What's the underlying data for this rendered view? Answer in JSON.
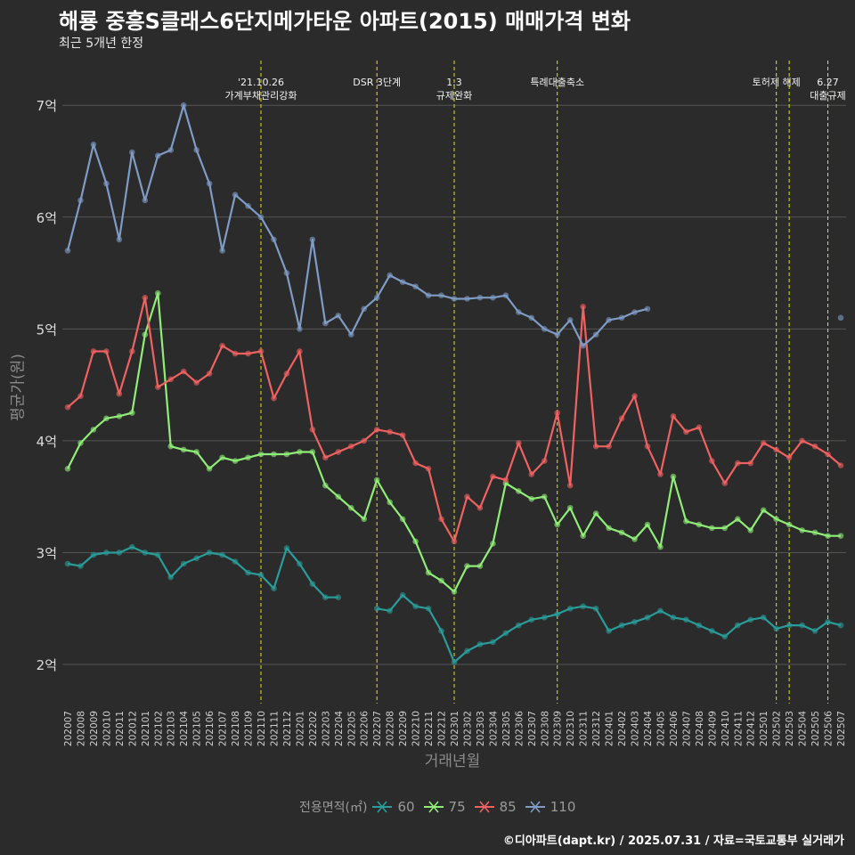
{
  "title": "해룡 중흥S클래스6단지메가타운 아파트(2015) 매매가격 변화",
  "subtitle": "최근 5개년 한정",
  "caption": "©디아파트(dapt.kr) / 2025.07.31 / 자료=국토교통부 실거래가",
  "colors": {
    "60": "#2a9d9a",
    "75": "#90ee78",
    "85": "#f06161",
    "110": "#7f9cc6",
    "vline": "#e6e600",
    "grid": "#555555",
    "bg": "#2b2b2b"
  },
  "chart_data": {
    "type": "line",
    "xlabel": "거래년월",
    "ylabel": "평균가(원)",
    "ylim": [
      1.65,
      7.4
    ],
    "yticks": [
      2,
      3,
      4,
      5,
      6,
      7
    ],
    "ytick_labels": [
      "2억",
      "3억",
      "4억",
      "5억",
      "6억",
      "7억"
    ],
    "grid": "horizontal",
    "x": [
      "202007",
      "202008",
      "202009",
      "202010",
      "202011",
      "202012",
      "202101",
      "202102",
      "202103",
      "202104",
      "202105",
      "202106",
      "202107",
      "202108",
      "202109",
      "202110",
      "202111",
      "202112",
      "202201",
      "202202",
      "202203",
      "202204",
      "202205",
      "202206",
      "202207",
      "202208",
      "202209",
      "202210",
      "202211",
      "202212",
      "202301",
      "202302",
      "202303",
      "202304",
      "202305",
      "202306",
      "202307",
      "202308",
      "202309",
      "202310",
      "202311",
      "202312",
      "202401",
      "202402",
      "202403",
      "202404",
      "202405",
      "202406",
      "202407",
      "202408",
      "202409",
      "202410",
      "202411",
      "202412",
      "202501",
      "202502",
      "202503",
      "202504",
      "202505",
      "202506",
      "202507"
    ],
    "legend_title": "전용면적(㎡)",
    "legend_position": "bottom",
    "series": [
      {
        "name": "60",
        "values": [
          2.9,
          2.88,
          2.98,
          3.0,
          3.0,
          3.05,
          3.0,
          2.98,
          2.78,
          2.9,
          2.95,
          3.0,
          2.98,
          2.92,
          2.82,
          2.8,
          2.68,
          3.04,
          2.9,
          2.72,
          2.6,
          2.6,
          null,
          null,
          2.5,
          2.48,
          2.62,
          2.52,
          2.5,
          2.3,
          2.02,
          2.12,
          2.18,
          2.2,
          2.28,
          2.35,
          2.4,
          2.42,
          2.45,
          2.5,
          2.52,
          2.5,
          2.3,
          2.35,
          2.38,
          2.42,
          2.48,
          2.42,
          2.4,
          2.35,
          2.3,
          2.25,
          2.35,
          2.4,
          2.42,
          2.32,
          2.35,
          2.35,
          2.3,
          2.38,
          2.35
        ]
      },
      {
        "name": "75",
        "values": [
          3.75,
          3.98,
          4.1,
          4.2,
          4.22,
          4.25,
          4.95,
          5.32,
          3.95,
          3.92,
          3.9,
          3.75,
          3.85,
          3.82,
          3.85,
          3.88,
          3.88,
          3.88,
          3.9,
          3.9,
          3.6,
          3.5,
          3.4,
          3.3,
          3.65,
          3.45,
          3.3,
          3.1,
          2.82,
          2.75,
          2.65,
          2.88,
          2.88,
          3.08,
          3.62,
          3.55,
          3.48,
          3.5,
          3.25,
          3.4,
          3.15,
          3.35,
          3.22,
          3.18,
          3.12,
          3.25,
          3.05,
          3.68,
          3.28,
          3.25,
          3.22,
          3.22,
          3.3,
          3.2,
          3.38,
          3.3,
          3.25,
          3.2,
          3.18,
          3.15,
          3.15
        ]
      },
      {
        "name": "85",
        "values": [
          4.3,
          4.4,
          4.8,
          4.8,
          4.42,
          4.8,
          5.28,
          4.48,
          4.55,
          4.62,
          4.52,
          4.6,
          4.85,
          4.78,
          4.78,
          4.8,
          4.38,
          4.6,
          4.8,
          4.1,
          3.85,
          3.9,
          3.95,
          4.0,
          4.1,
          4.08,
          4.05,
          3.8,
          3.75,
          3.3,
          3.1,
          3.5,
          3.4,
          3.68,
          3.65,
          3.98,
          3.7,
          3.82,
          4.25,
          3.6,
          5.2,
          3.95,
          3.95,
          4.2,
          4.4,
          3.95,
          3.7,
          4.22,
          4.08,
          4.12,
          3.82,
          3.62,
          3.8,
          3.8,
          3.98,
          3.92,
          3.85,
          4.0,
          3.95,
          3.88,
          3.78
        ]
      },
      {
        "name": "110",
        "values": [
          5.7,
          6.15,
          6.65,
          6.3,
          5.8,
          6.58,
          6.15,
          6.55,
          6.6,
          7.0,
          6.6,
          6.3,
          5.7,
          6.2,
          6.1,
          6.0,
          5.8,
          5.5,
          5.0,
          5.8,
          5.05,
          5.12,
          4.95,
          5.18,
          5.28,
          5.48,
          5.42,
          5.38,
          5.3,
          5.3,
          5.27,
          5.27,
          5.28,
          5.28,
          5.3,
          5.15,
          5.1,
          5.0,
          4.95,
          5.08,
          4.85,
          4.95,
          5.08,
          5.1,
          5.15,
          5.18,
          null,
          null,
          null,
          null,
          null,
          null,
          null,
          null,
          null,
          null,
          null,
          null,
          null,
          null,
          5.1
        ]
      }
    ],
    "events": [
      {
        "x": "202110",
        "lines": [
          "'21.10.26",
          "가계부채관리강화"
        ]
      },
      {
        "x": "202207",
        "lines": [
          "DSR 3단계"
        ]
      },
      {
        "x": "202301",
        "lines": [
          "1.3",
          "규제완화"
        ]
      },
      {
        "x": "202309",
        "lines": [
          "특례대출축소"
        ]
      },
      {
        "x": "202502",
        "lines": [
          "토허제 해제"
        ]
      },
      {
        "x": "202503",
        "lines": []
      },
      {
        "x": "202506",
        "lines": [
          "6.27",
          "대출규제"
        ]
      }
    ],
    "marker_style": "points semi-transparent per transaction, X marks for latest/highlighted deals"
  }
}
